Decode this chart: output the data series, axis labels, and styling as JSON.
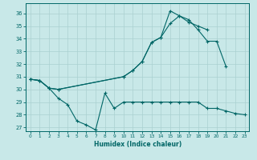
{
  "bg_color": "#c8e8e8",
  "line_color": "#006666",
  "grid_color": "#aad0d0",
  "xlabel": "Humidex (Indice chaleur)",
  "xlim": [
    -0.5,
    23.5
  ],
  "ylim": [
    26.7,
    36.8
  ],
  "yticks": [
    27,
    28,
    29,
    30,
    31,
    32,
    33,
    34,
    35,
    36
  ],
  "xticks": [
    0,
    1,
    2,
    3,
    4,
    5,
    6,
    7,
    8,
    9,
    10,
    11,
    12,
    13,
    14,
    15,
    16,
    17,
    18,
    19,
    20,
    21,
    22,
    23
  ],
  "series": [
    {
      "x": [
        0,
        1,
        2,
        3,
        4,
        5,
        6,
        7,
        8,
        9,
        10,
        11,
        12,
        13,
        14,
        15,
        16,
        17,
        18,
        19,
        20,
        21,
        22,
        23
      ],
      "y": [
        30.8,
        30.7,
        30.1,
        29.3,
        28.8,
        27.5,
        27.2,
        26.8,
        29.7,
        28.5,
        29.0,
        29.0,
        29.0,
        29.0,
        29.0,
        29.0,
        29.0,
        29.0,
        29.0,
        28.5,
        28.5,
        28.3,
        28.1,
        28.0
      ]
    },
    {
      "x": [
        0,
        1,
        2,
        3,
        10,
        11,
        12,
        13,
        14,
        15,
        16,
        17,
        18,
        19,
        20,
        21
      ],
      "y": [
        30.8,
        30.7,
        30.1,
        30.0,
        31.0,
        31.5,
        32.2,
        33.7,
        34.1,
        35.2,
        35.8,
        35.5,
        34.7,
        33.8,
        33.8,
        31.8
      ]
    },
    {
      "x": [
        0,
        1,
        2,
        3,
        10,
        11,
        12,
        13,
        14,
        15,
        16,
        17,
        18,
        19
      ],
      "y": [
        30.8,
        30.7,
        30.1,
        30.0,
        31.0,
        31.5,
        32.2,
        33.7,
        34.1,
        36.2,
        35.8,
        35.3,
        35.0,
        34.7
      ]
    }
  ]
}
